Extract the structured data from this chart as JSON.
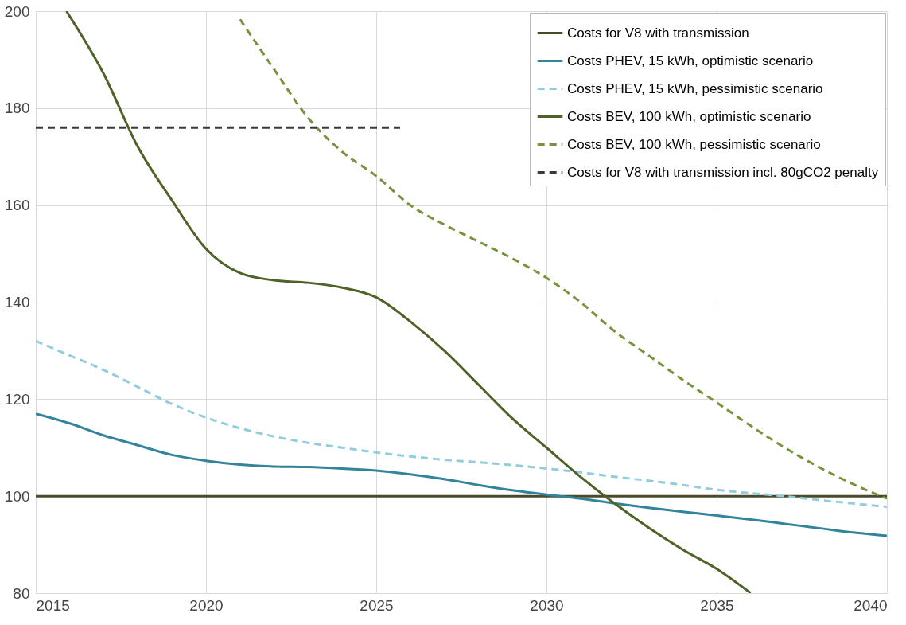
{
  "chart_data": {
    "type": "line",
    "xlim": [
      2015,
      2040
    ],
    "xticks": [
      2015,
      2020,
      2025,
      2030,
      2035,
      2040
    ],
    "ylim": [
      80,
      200
    ],
    "yticks": [
      80,
      100,
      120,
      140,
      160,
      180,
      200
    ],
    "grid": true,
    "legend": "top right",
    "series": [
      {
        "name": "Costs for V8 with transmission",
        "color": "#4a4a2a",
        "line_style": "solid",
        "x": [
          2015,
          2040
        ],
        "values": [
          100,
          100
        ]
      },
      {
        "name": "Costs PHEV, 15 kWh, optimistic scenario",
        "color": "#31849b",
        "line_style": "solid",
        "x": [
          2015,
          2016,
          2017,
          2018,
          2019,
          2020,
          2021,
          2022,
          2023,
          2024,
          2025,
          2026,
          2027,
          2028,
          2029,
          2030,
          2031,
          2032,
          2033,
          2034,
          2035,
          2036,
          2037,
          2038,
          2039,
          2040
        ],
        "values": [
          117,
          115,
          112.5,
          110.5,
          108.5,
          107.3,
          106.5,
          106.1,
          106,
          105.7,
          105.3,
          104.5,
          103.5,
          102.3,
          101.2,
          100.3,
          99.5,
          98.5,
          97.6,
          96.8,
          96,
          95.2,
          94.3,
          93.4,
          92.5,
          91.8
        ]
      },
      {
        "name": "Costs PHEV, 15 kWh, pessimistic scenario",
        "color": "#92cddc",
        "line_style": "dashed",
        "x": [
          2015,
          2016,
          2017,
          2018,
          2019,
          2020,
          2021,
          2022,
          2023,
          2024,
          2025,
          2026,
          2027,
          2028,
          2029,
          2030,
          2031,
          2032,
          2033,
          2034,
          2035,
          2036,
          2037,
          2038,
          2039,
          2040
        ],
        "values": [
          132,
          129,
          126,
          122.5,
          119,
          116.2,
          114,
          112.3,
          111,
          110,
          109,
          108.2,
          107.5,
          107,
          106.4,
          105.7,
          104.9,
          104,
          103.2,
          102.3,
          101.3,
          100.6,
          100,
          99.2,
          98.5,
          97.8
        ]
      },
      {
        "name": "Costs BEV, 100 kWh, optimistic scenario",
        "color": "#4f6228",
        "line_style": "solid",
        "x": [
          2015.9,
          2017,
          2018,
          2019,
          2020,
          2021,
          2022,
          2023,
          2024,
          2025,
          2026,
          2027,
          2028,
          2029,
          2030,
          2031,
          2032,
          2033,
          2034,
          2035,
          2036
        ],
        "values": [
          200,
          187,
          172,
          161,
          151,
          146,
          144.5,
          144,
          143,
          141,
          136,
          130,
          123,
          116,
          110,
          104,
          98.5,
          93.5,
          89,
          85,
          80
        ]
      },
      {
        "name": "Costs BEV, 100 kWh, pessimistic scenario",
        "color": "#77933c",
        "line_style": "dashed",
        "x": [
          2021,
          2022,
          2023,
          2024,
          2025,
          2026,
          2027,
          2028,
          2029,
          2030,
          2031,
          2032,
          2033,
          2034,
          2035,
          2036,
          2037,
          2038,
          2039,
          2040
        ],
        "values": [
          198.3,
          188,
          178,
          171,
          166,
          160,
          156,
          152.5,
          149,
          145,
          140,
          134,
          129,
          124,
          119.3,
          114.5,
          110,
          106,
          102.5,
          99.5
        ]
      },
      {
        "name": "Costs for V8 with transmission incl. 80gCO2 penalty",
        "color": "#3a3a3a",
        "line_style": "dashed",
        "x": [
          2015,
          2025.7
        ],
        "values": [
          176,
          176
        ]
      }
    ]
  }
}
